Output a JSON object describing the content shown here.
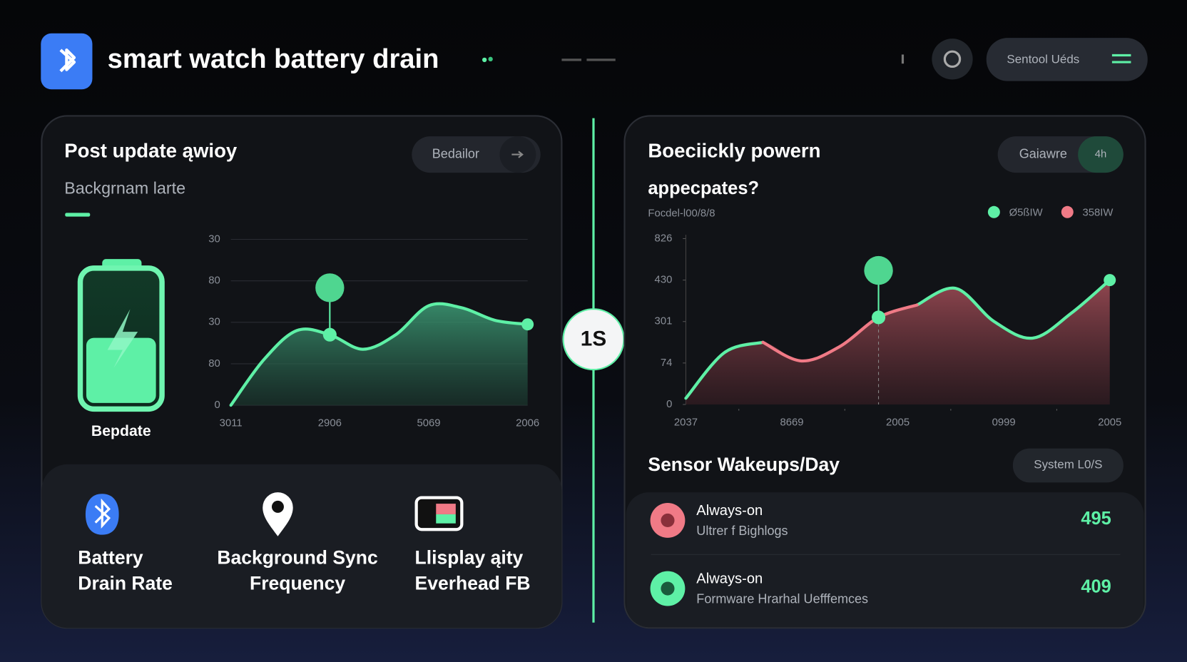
{
  "header": {
    "title": "smart watch battery drain",
    "button": "Sentool Uéds"
  },
  "left_panel": {
    "title": "Post update ąwioy",
    "subtitle": "Backgrnam larte",
    "button": "Bedailor",
    "battery_label": "Bepdate",
    "chart": {
      "type": "area",
      "color": "#5ef0a6",
      "ylim": [
        0,
        4
      ],
      "yticks": [
        0,
        {
          "value": 1,
          "label": "80"
        },
        {
          "value": 2,
          "label": "30"
        },
        {
          "value": 3,
          "label": "80"
        },
        {
          "value": 4,
          "label": "30"
        }
      ],
      "x_labels": [
        "3011",
        "2906",
        "5069",
        "2006"
      ],
      "values": [
        0,
        1.1,
        1.8,
        1.7,
        1.35,
        1.7,
        2.4,
        2.35,
        2.05,
        1.95
      ],
      "highlight": 3,
      "grid": true
    },
    "tiles": [
      {
        "label": "Battery Drain Rate"
      },
      {
        "label": "Background Sync Frequency"
      },
      {
        "label": "Llisplay ąity Everhead FB"
      }
    ]
  },
  "center_badge": "1S",
  "right_panel": {
    "title": "Boeciickly powern",
    "title_line2": "appecpates?",
    "subtitle": "Focdel-l00/8/8",
    "button": "Gaiawre",
    "button_tag": "4h",
    "chart": {
      "type": "area",
      "ylim": [
        0,
        4
      ],
      "yticks": [
        0,
        {
          "value": 1,
          "label": "74"
        },
        {
          "value": 2,
          "label": "301"
        },
        {
          "value": 3,
          "label": "430"
        },
        {
          "value": 4,
          "label": "826"
        }
      ],
      "x_labels": [
        "2037",
        "8669",
        "2005",
        "0999",
        "2005"
      ],
      "series": [
        {
          "name": "Ø5ßIW",
          "color": "#5ef0a6",
          "values": [
            0.15,
            1.25,
            1.5,
            null,
            null,
            null,
            2.4,
            2.8,
            2.0,
            1.6,
            2.2,
            3.0
          ]
        },
        {
          "name": "358IW",
          "color": "#f07a86",
          "values": [
            null,
            null,
            1.5,
            1.05,
            1.4,
            2.1,
            2.4,
            null,
            null,
            null,
            null,
            null
          ]
        }
      ],
      "highlight": 5,
      "grid": false
    },
    "sensor": {
      "title": "Sensor Wakeups/Day",
      "button": "System L0/S",
      "rows": [
        {
          "title": "Always-on",
          "subtitle": "Ultrer f Bighlogs",
          "value": 495
        },
        {
          "title": "Always-on",
          "subtitle": "Formware Hrarhal Uefffemces",
          "value": 409
        }
      ]
    }
  }
}
